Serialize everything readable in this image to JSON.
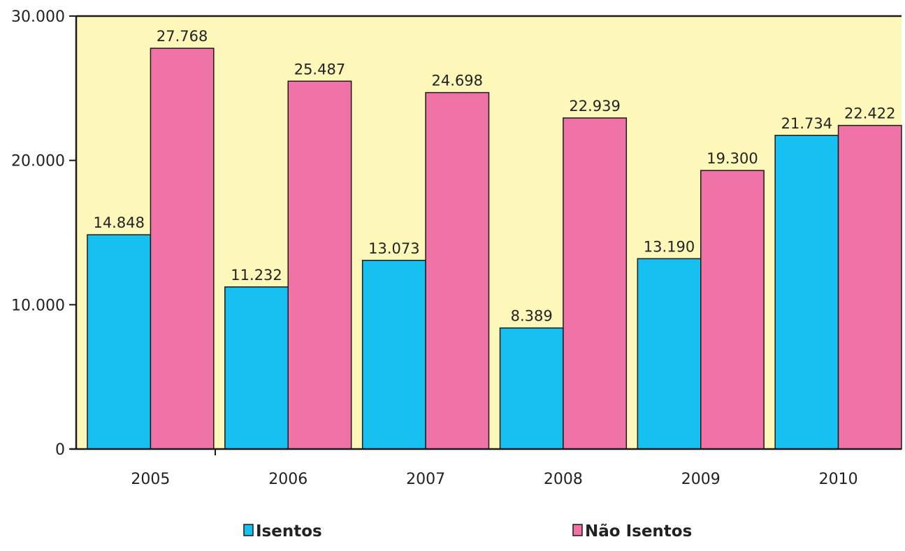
{
  "chart_data": {
    "type": "bar",
    "categories": [
      "2005",
      "2006",
      "2007",
      "2008",
      "2009",
      "2010"
    ],
    "series": [
      {
        "name": "Isentos",
        "color": "#16C0F0",
        "values": [
          14848,
          11232,
          13073,
          8389,
          13190,
          21734
        ],
        "labels": [
          "14.848",
          "11.232",
          "13.073",
          "8.389",
          "13.190",
          "21.734"
        ]
      },
      {
        "name": "Não Isentos",
        "color": "#F073A8",
        "values": [
          27768,
          25487,
          24698,
          22939,
          19300,
          22422
        ],
        "labels": [
          "27.768",
          "25.487",
          "24.698",
          "22.939",
          "19.300",
          "22.422"
        ]
      }
    ],
    "ylim": [
      0,
      30000
    ],
    "yticks": [
      0,
      10000,
      20000,
      30000
    ],
    "ytick_labels": [
      "0",
      "10.000",
      "20.000",
      "30.000"
    ],
    "plot_background": "#FDF8BA",
    "grid": false,
    "legend_position": "bottom"
  }
}
